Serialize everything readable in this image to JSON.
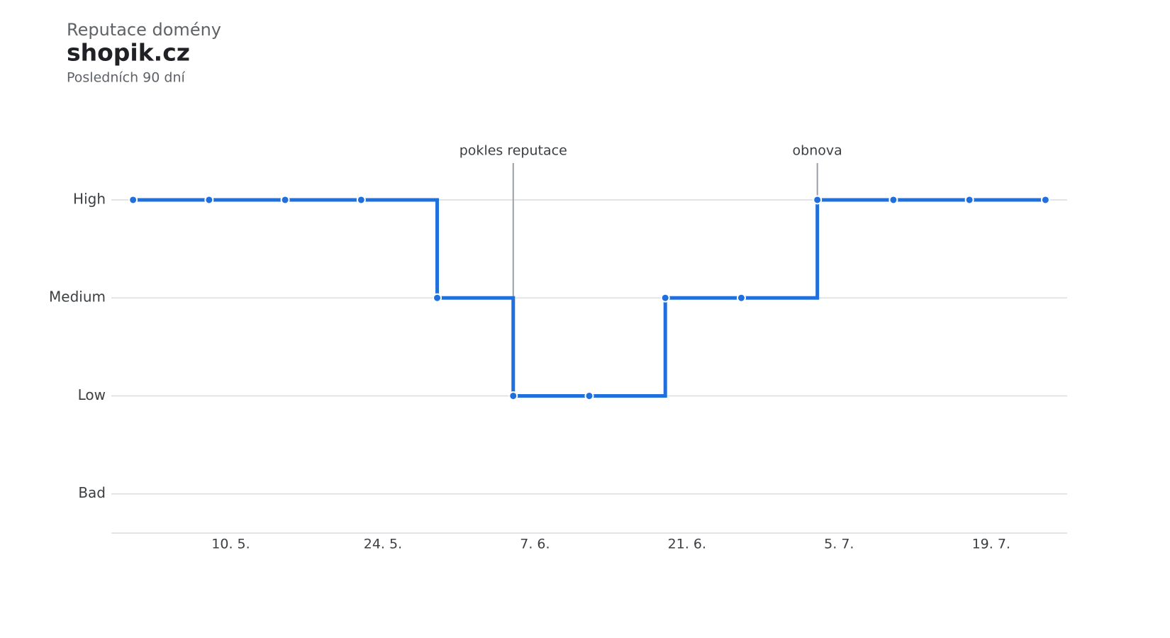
{
  "chart_data": {
    "type": "step",
    "title": "Reputace domény",
    "heading": "shopik.cz",
    "subtitle": "Posledních 90 dní",
    "x": [
      "1. 5.",
      "8. 5.",
      "15. 5.",
      "22. 5.",
      "29. 5.",
      "5. 6.",
      "12. 6.",
      "19. 6.",
      "26. 6.",
      "3. 7.",
      "10. 7.",
      "17. 7.",
      "24. 7."
    ],
    "series": [
      {
        "color": "#1f6fdc",
        "values": [
          3,
          3,
          3,
          3,
          2,
          1,
          1,
          2,
          2,
          3,
          3,
          3,
          3
        ]
      }
    ],
    "xlim": [
      "29. 4.",
      "26. 7."
    ],
    "xticks": [
      "10. 5.",
      "24. 5.",
      "7. 6.",
      "21. 6.",
      "5. 7.",
      "19. 7."
    ],
    "ylim": [
      -0.4,
      3.6
    ],
    "yticks": [
      {
        "value": 0,
        "label": "Bad"
      },
      {
        "value": 1,
        "label": "Low"
      },
      {
        "value": 2,
        "label": "Medium"
      },
      {
        "value": 3,
        "label": "High"
      }
    ],
    "grid": true,
    "annotations": [
      {
        "text": "pokles reputace",
        "x": "5. 6."
      },
      {
        "text": "obnova",
        "x": "3. 7."
      }
    ]
  }
}
